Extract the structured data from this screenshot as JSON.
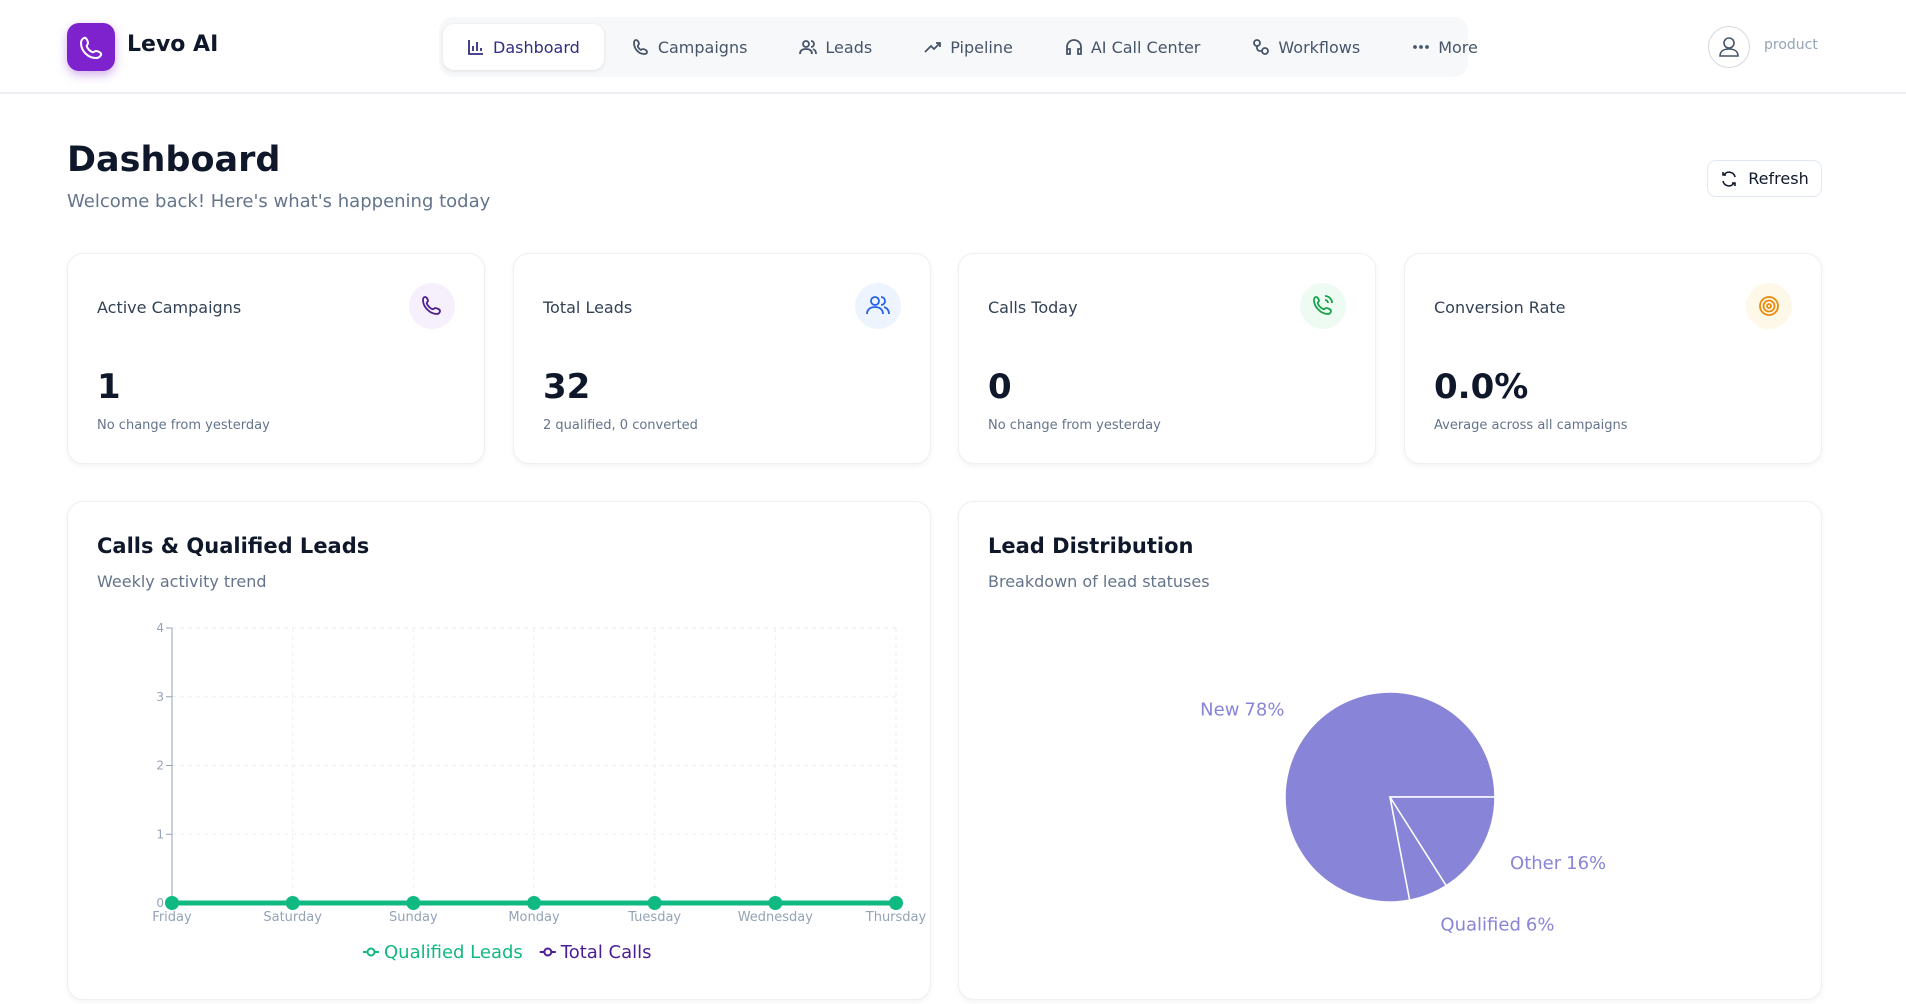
{
  "header": {
    "brand": "Levo AI",
    "nav": [
      "Dashboard",
      "Campaigns",
      "Leads",
      "Pipeline",
      "AI Call Center",
      "Workflows",
      "More"
    ],
    "user": "product"
  },
  "page": {
    "title": "Dashboard",
    "subtitle": "Welcome back! Here's what's happening today",
    "refresh": "Refresh"
  },
  "stats": [
    {
      "label": "Active Campaigns",
      "value": "1",
      "note": "No change from yesterday"
    },
    {
      "label": "Total Leads",
      "value": "32",
      "note": "2 qualified, 0 converted"
    },
    {
      "label": "Calls Today",
      "value": "0",
      "note": "No change from yesterday"
    },
    {
      "label": "Conversion Rate",
      "value": "0.0%",
      "note": "Average across all campaigns"
    }
  ],
  "chart_data": [
    {
      "type": "line",
      "title": "Calls & Qualified Leads",
      "subtitle": "Weekly activity trend",
      "categories": [
        "Friday",
        "Saturday",
        "Sunday",
        "Monday",
        "Tuesday",
        "Wednesday",
        "Thursday"
      ],
      "series": [
        {
          "name": "Qualified Leads",
          "color": "#10b981",
          "values": [
            0,
            0,
            0,
            0,
            0,
            0,
            0
          ]
        },
        {
          "name": "Total Calls",
          "color": "#4c1d95",
          "values": [
            0,
            0,
            0,
            0,
            0,
            0,
            0
          ]
        }
      ],
      "ylim": [
        0,
        4
      ],
      "yticks": [
        0,
        1,
        2,
        3,
        4
      ],
      "grid": true
    },
    {
      "type": "pie",
      "title": "Lead Distribution",
      "subtitle": "Breakdown of lead statuses",
      "categories": [
        "New",
        "Qualified",
        "Other"
      ],
      "values": [
        78,
        6,
        16
      ],
      "value_labels": [
        "78%",
        "6%",
        "16%"
      ],
      "color": "#8884d8"
    }
  ]
}
